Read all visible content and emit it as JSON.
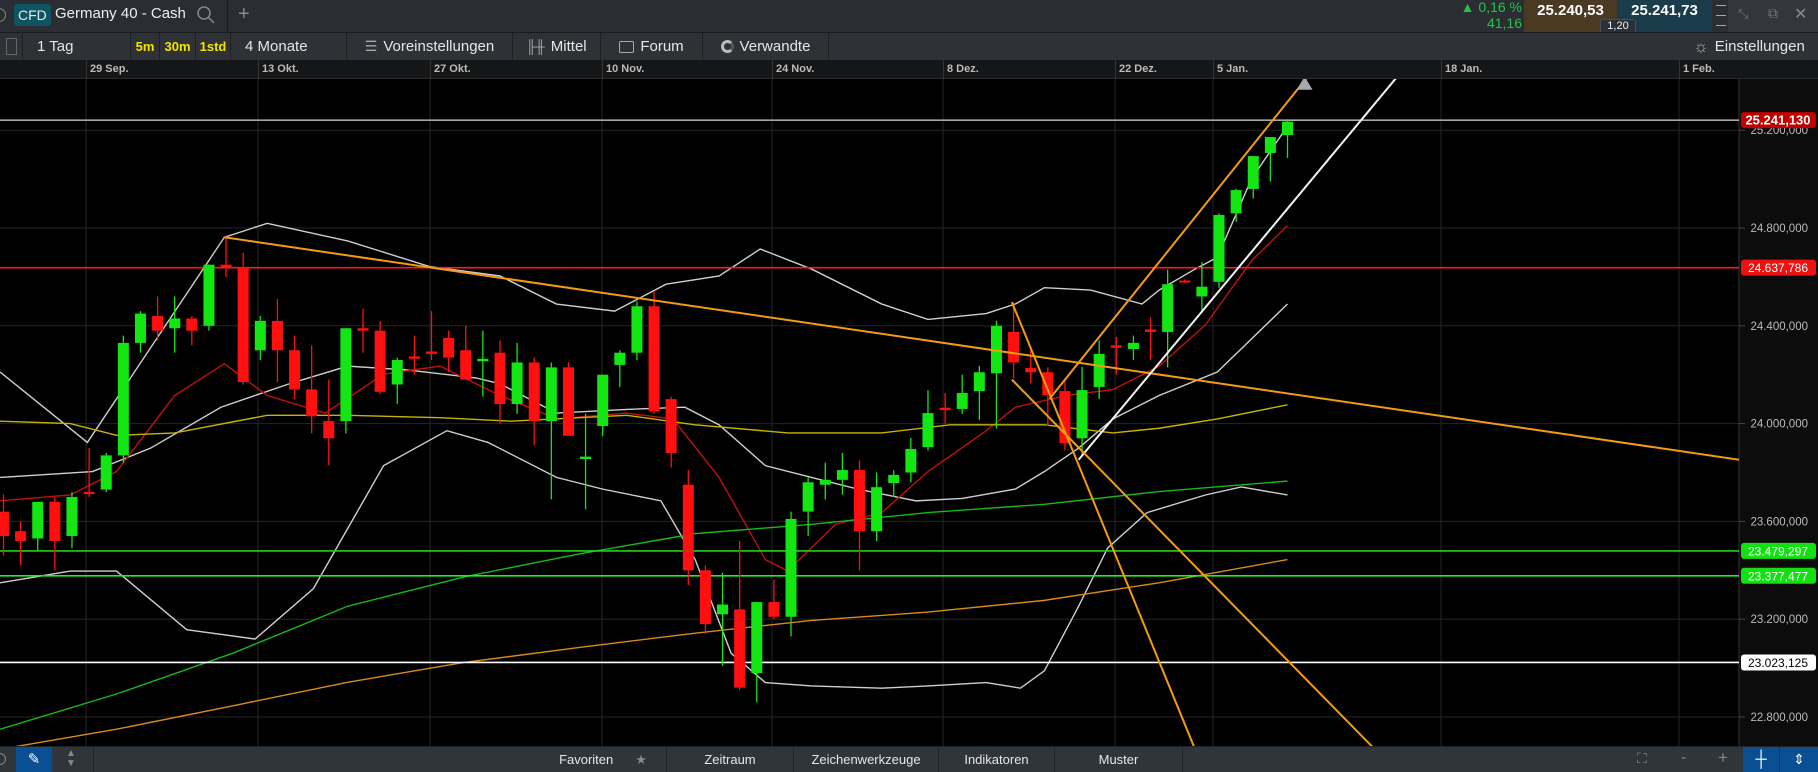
{
  "header": {
    "badge": "CFD",
    "instrument": "Germany 40 - Cash",
    "add_tab": "+",
    "change_pct": "0,16 %",
    "change_abs": "41,16",
    "sell_price": "25.240,53",
    "buy_price": "25.241,73",
    "spread": "1,20",
    "colors": {
      "up": "#21c44a",
      "sell_bg": "#4a3a24",
      "buy_bg": "#1b3d4b",
      "badge_bg": "#0d5561"
    }
  },
  "toolbar": {
    "interval": "1 Tag",
    "quick_intervals": [
      "5m",
      "30m",
      "1std"
    ],
    "range": "4 Monate",
    "presets": "Voreinstellungen",
    "chart_type": "Mittel",
    "forum": "Forum",
    "related": "Verwandte",
    "settings": "Einstellungen"
  },
  "bottombar": {
    "favorites": "Favoriten",
    "period": "Zeitraum",
    "drawing_tools": "Zeichenwerkzeuge",
    "indicators": "Indikatoren",
    "patterns": "Muster",
    "zoom_out": "-",
    "zoom_in": "+"
  },
  "chart_data": {
    "type": "candlestick",
    "date_ticks": [
      "29 Sep.",
      "13 Okt.",
      "27 Okt.",
      "10 Nov.",
      "24 Nov.",
      "8 Dez.",
      "22 Dez.",
      "5 Jan.",
      "18 Jan.",
      "1 Feb."
    ],
    "price_ticks": [
      {
        "value": 25200,
        "label": "25.200,000"
      },
      {
        "value": 24800,
        "label": "24.800,000"
      },
      {
        "value": 24400,
        "label": "24.400,000"
      },
      {
        "value": 24000,
        "label": "24.000,000"
      },
      {
        "value": 23600,
        "label": "23.600,000"
      },
      {
        "value": 23200,
        "label": "23.200,000"
      },
      {
        "value": 22800,
        "label": "22.800,000"
      }
    ],
    "ylim": [
      22620,
      25660
    ],
    "grid": true,
    "colors": {
      "up": "#14e614",
      "down": "#ff1010"
    },
    "candles_ohlc": [
      [
        23640,
        23710,
        23460,
        23540
      ],
      [
        23560,
        23600,
        23420,
        23520
      ],
      [
        23530,
        23680,
        23480,
        23680
      ],
      [
        23680,
        23700,
        23400,
        23520
      ],
      [
        23540,
        23720,
        23490,
        23700
      ],
      [
        23720,
        23900,
        23700,
        23715
      ],
      [
        23730,
        23880,
        23720,
        23870
      ],
      [
        23870,
        24360,
        23840,
        24330
      ],
      [
        24330,
        24460,
        24290,
        24450
      ],
      [
        24440,
        24520,
        24340,
        24380
      ],
      [
        24390,
        24520,
        24290,
        24430
      ],
      [
        24430,
        24440,
        24320,
        24380
      ],
      [
        24400,
        24650,
        24380,
        24650
      ],
      [
        24650,
        24770,
        24600,
        24640
      ],
      [
        24640,
        24700,
        24160,
        24170
      ],
      [
        24300,
        24440,
        24260,
        24420
      ],
      [
        24420,
        24510,
        24170,
        24300
      ],
      [
        24300,
        24360,
        24100,
        24140
      ],
      [
        24140,
        24320,
        23960,
        24030
      ],
      [
        24010,
        24180,
        23830,
        23940
      ],
      [
        24010,
        24390,
        23960,
        24390
      ],
      [
        24390,
        24470,
        24290,
        24380
      ],
      [
        24380,
        24420,
        24120,
        24130
      ],
      [
        24160,
        24270,
        24080,
        24260
      ],
      [
        24275,
        24360,
        24200,
        24265
      ],
      [
        24295,
        24460,
        24260,
        24285
      ],
      [
        24350,
        24380,
        24210,
        24270
      ],
      [
        24300,
        24400,
        24180,
        24180
      ],
      [
        24255,
        24380,
        24110,
        24265
      ],
      [
        24290,
        24340,
        24000,
        24080
      ],
      [
        24080,
        24330,
        24040,
        24250
      ],
      [
        24250,
        24270,
        23910,
        24010
      ],
      [
        24010,
        24250,
        23690,
        24230
      ],
      [
        24230,
        24250,
        23980,
        23950
      ],
      [
        23855,
        24040,
        23650,
        23865
      ],
      [
        23990,
        24200,
        23950,
        24200
      ],
      [
        24240,
        24300,
        24150,
        24290
      ],
      [
        24290,
        24500,
        24260,
        24480
      ],
      [
        24480,
        24540,
        24040,
        24050
      ],
      [
        24100,
        24110,
        23820,
        23880
      ],
      [
        23750,
        23810,
        23340,
        23400
      ],
      [
        23400,
        23420,
        23140,
        23180
      ],
      [
        23220,
        23390,
        23010,
        23260
      ],
      [
        23240,
        23520,
        22910,
        22920
      ],
      [
        22980,
        23260,
        22860,
        23270
      ],
      [
        23270,
        23360,
        23200,
        23210
      ],
      [
        23210,
        23640,
        23130,
        23610
      ],
      [
        23640,
        23780,
        23540,
        23760
      ],
      [
        23750,
        23840,
        23690,
        23770
      ],
      [
        23770,
        23880,
        23710,
        23810
      ],
      [
        23810,
        23850,
        23400,
        23560
      ],
      [
        23560,
        23800,
        23520,
        23740
      ],
      [
        23757,
        23810,
        23700,
        23790
      ],
      [
        23800,
        23941,
        23760,
        23896
      ],
      [
        23904,
        24137,
        23890,
        24043
      ],
      [
        24065,
        24125,
        24000,
        24055
      ],
      [
        24060,
        24200,
        24040,
        24125
      ],
      [
        24133,
        24236,
        24015,
        24210
      ],
      [
        24206,
        24420,
        23980,
        24400
      ],
      [
        24375,
        24497,
        24185,
        24250
      ],
      [
        24227,
        24300,
        24165,
        24210
      ],
      [
        24210,
        24230,
        23990,
        24117
      ],
      [
        24133,
        24180,
        23890,
        23920
      ],
      [
        23940,
        24232,
        23870,
        24137
      ],
      [
        24150,
        24340,
        24100,
        24285
      ],
      [
        24320,
        24355,
        24200,
        24310
      ],
      [
        24305,
        24360,
        24260,
        24330
      ],
      [
        24385,
        24435,
        24260,
        24375
      ],
      [
        24375,
        24630,
        24230,
        24570
      ],
      [
        24585,
        24590,
        24575,
        24578
      ],
      [
        24520,
        24660,
        24452,
        24560
      ],
      [
        24580,
        24860,
        24555,
        24853
      ],
      [
        24860,
        24960,
        24825,
        24955
      ],
      [
        24960,
        25094,
        24920,
        25094
      ],
      [
        25107,
        25172,
        24990,
        25172
      ],
      [
        25180,
        25245,
        25086,
        25235
      ]
    ],
    "horizontal_levels": [
      {
        "value": 25241.13,
        "label": "25.241,130",
        "color": "#a8a8a8",
        "label_bg": "#c00000",
        "label_fg": "#ffffff"
      },
      {
        "value": 24637.786,
        "label": "24.637,786",
        "color": "#ff1a1a",
        "label_bg": "#ee1111",
        "label_fg": "#ffffff"
      },
      {
        "value": 23479.297,
        "label": "23.479,297",
        "color": "#1fd31f",
        "label_bg": "#12e012",
        "label_fg": "#ffffff"
      },
      {
        "value": 23377.477,
        "label": "23.377,477",
        "color": "#22ee22",
        "label_bg": "#12e012",
        "label_fg": "#ffffff"
      },
      {
        "value": 23023.125,
        "label": "23.023,125",
        "color": "#ffffff",
        "label_bg": "#ffffff",
        "label_fg": "#000000"
      }
    ],
    "trendlines": [
      {
        "color": "#f39c12",
        "from": [
          12.9,
          24762
        ],
        "to": [
          101.4,
          23852
        ]
      },
      {
        "color": "#f39c12",
        "from": [
          61.1,
          24101
        ],
        "to": [
          76.5,
          25447
        ]
      },
      {
        "color": "#f5f5f5",
        "from": [
          62.8,
          23852
        ],
        "to": [
          81.4,
          25418
        ]
      },
      {
        "color": "#f39c12",
        "from": [
          58.9,
          24497
        ],
        "to": [
          69.6,
          22668
        ]
      },
      {
        "color": "#f39c12",
        "from": [
          58.9,
          24180
        ],
        "to": [
          80.1,
          22668
        ]
      }
    ],
    "alert_marker": {
      "index": 76,
      "value": 25390,
      "color": "#a9a9a9"
    },
    "indicators": [
      {
        "color": "#cfcfcf",
        "points": [
          [
            -0.2,
            24211
          ],
          [
            4.9,
            23923
          ],
          [
            12.9,
            24762
          ],
          [
            15.4,
            24819
          ],
          [
            20.1,
            24747
          ],
          [
            24.9,
            24642
          ],
          [
            29,
            24604
          ],
          [
            32.3,
            24489
          ],
          [
            35.7,
            24460
          ],
          [
            38.7,
            24570
          ],
          [
            41.8,
            24604
          ],
          [
            44.2,
            24714
          ],
          [
            47.2,
            24632
          ],
          [
            51.3,
            24489
          ],
          [
            54,
            24426
          ],
          [
            57.4,
            24450
          ],
          [
            59.1,
            24489
          ],
          [
            60.8,
            24556
          ],
          [
            63.5,
            24546
          ],
          [
            66.5,
            24489
          ],
          [
            67.5,
            24546
          ],
          [
            69.6,
            24632
          ],
          [
            70.9,
            24680
          ],
          [
            72.9,
            25001
          ],
          [
            75,
            25217
          ]
        ]
      },
      {
        "color": "#cfcfcf",
        "points": [
          [
            -0.2,
            23780
          ],
          [
            5.2,
            23804
          ],
          [
            8.6,
            23900
          ],
          [
            12.7,
            24067
          ],
          [
            16.7,
            24163
          ],
          [
            20.1,
            24235
          ],
          [
            23.5,
            24220
          ],
          [
            27.6,
            24187
          ],
          [
            29,
            24163
          ],
          [
            32.3,
            24043
          ],
          [
            36.4,
            24058
          ],
          [
            39.8,
            24067
          ],
          [
            41.8,
            23995
          ],
          [
            44.5,
            23828
          ],
          [
            47.2,
            23780
          ],
          [
            49.9,
            23732
          ],
          [
            53.3,
            23684
          ],
          [
            56,
            23694
          ],
          [
            59.1,
            23732
          ],
          [
            60.8,
            23804
          ],
          [
            62.8,
            23900
          ],
          [
            64.8,
            24019
          ],
          [
            67.5,
            24115
          ],
          [
            70.9,
            24211
          ],
          [
            75,
            24489
          ]
        ]
      },
      {
        "color": "#cfcfcf",
        "points": [
          [
            -0.2,
            23349
          ],
          [
            3.9,
            23397
          ],
          [
            6.6,
            23397
          ],
          [
            10.7,
            23157
          ],
          [
            14.7,
            23119
          ],
          [
            18.1,
            23325
          ],
          [
            22.2,
            23828
          ],
          [
            25.9,
            23971
          ],
          [
            28.3,
            23923
          ],
          [
            32.3,
            23780
          ],
          [
            35,
            23732
          ],
          [
            38.4,
            23684
          ],
          [
            40.4,
            23444
          ],
          [
            42.5,
            23061
          ],
          [
            44.5,
            22941
          ],
          [
            47.2,
            22927
          ],
          [
            51.3,
            22918
          ],
          [
            54,
            22927
          ],
          [
            57.4,
            22941
          ],
          [
            59.4,
            22918
          ],
          [
            60.8,
            22989
          ],
          [
            62.8,
            23253
          ],
          [
            64.5,
            23492
          ],
          [
            66.8,
            23636
          ],
          [
            70.2,
            23708
          ],
          [
            72.3,
            23741
          ],
          [
            75,
            23708
          ]
        ]
      },
      {
        "color": "#c01010",
        "points": [
          [
            -0.2,
            23684
          ],
          [
            3.9,
            23708
          ],
          [
            6.6,
            23804
          ],
          [
            10,
            24115
          ],
          [
            12.9,
            24245
          ],
          [
            15.4,
            24115
          ],
          [
            18.8,
            24043
          ],
          [
            22.2,
            24202
          ],
          [
            25.5,
            24235
          ],
          [
            29,
            24115
          ],
          [
            32.3,
            24019
          ],
          [
            36.4,
            24043
          ],
          [
            39.1,
            24019
          ],
          [
            41.8,
            23780
          ],
          [
            44.5,
            23444
          ],
          [
            45.8,
            23397
          ],
          [
            48.6,
            23588
          ],
          [
            51.3,
            23636
          ],
          [
            54,
            23804
          ],
          [
            57.4,
            23971
          ],
          [
            59.1,
            24067
          ],
          [
            62.1,
            24115
          ],
          [
            64.8,
            24139
          ],
          [
            67.5,
            24235
          ],
          [
            70.2,
            24403
          ],
          [
            72.9,
            24666
          ],
          [
            75,
            24810
          ]
        ]
      },
      {
        "color": "#c8b400",
        "points": [
          [
            -0.2,
            24010
          ],
          [
            3.9,
            24000
          ],
          [
            6.6,
            23952
          ],
          [
            10,
            23962
          ],
          [
            15.4,
            24034
          ],
          [
            20.1,
            24034
          ],
          [
            25.5,
            24024
          ],
          [
            29.6,
            24010
          ],
          [
            36.4,
            24034
          ],
          [
            40.4,
            23995
          ],
          [
            45.8,
            23962
          ],
          [
            51.3,
            23962
          ],
          [
            55.3,
            23995
          ],
          [
            60.8,
            23995
          ],
          [
            64.8,
            23962
          ],
          [
            67.5,
            23981
          ],
          [
            70.9,
            24019
          ],
          [
            75,
            24077
          ]
        ]
      },
      {
        "color": "#18b818",
        "points": [
          [
            -0.2,
            22750
          ],
          [
            6.6,
            22894
          ],
          [
            13.4,
            23061
          ],
          [
            20.1,
            23253
          ],
          [
            26.9,
            23373
          ],
          [
            33.7,
            23468
          ],
          [
            40.4,
            23550
          ],
          [
            47.2,
            23588
          ],
          [
            54,
            23636
          ],
          [
            60.8,
            23670
          ],
          [
            67.5,
            23722
          ],
          [
            75,
            23765
          ]
        ]
      },
      {
        "color": "#d98a1a",
        "points": [
          [
            -0.2,
            22668
          ],
          [
            6.6,
            22750
          ],
          [
            13.4,
            22846
          ],
          [
            20.1,
            22942
          ],
          [
            26.9,
            23023
          ],
          [
            33.7,
            23085
          ],
          [
            40.4,
            23143
          ],
          [
            47.2,
            23195
          ],
          [
            54,
            23229
          ],
          [
            60.8,
            23277
          ],
          [
            67.5,
            23349
          ],
          [
            75,
            23444
          ]
        ]
      }
    ]
  }
}
